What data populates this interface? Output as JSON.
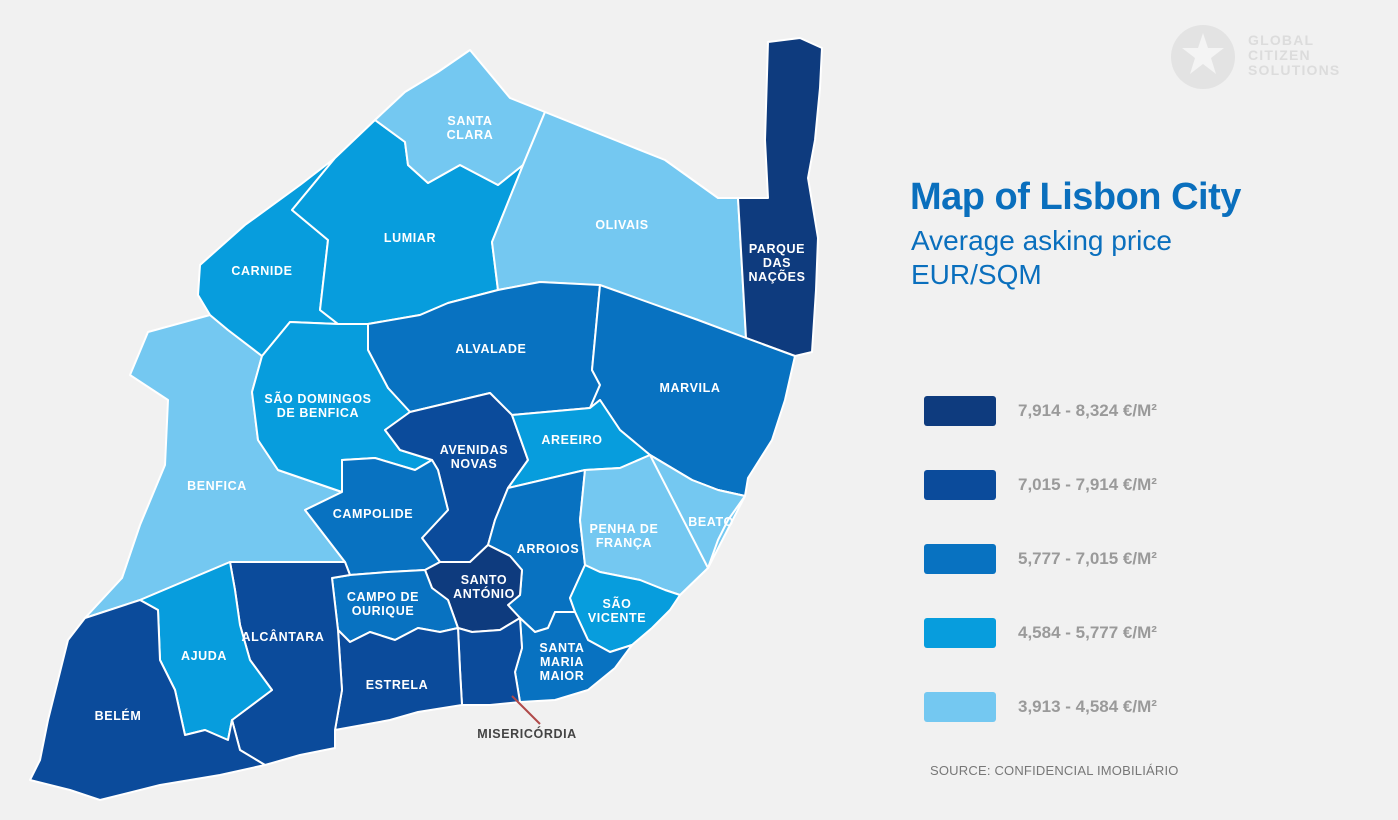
{
  "title": "Map of Lisbon City",
  "subtitle": "Average asking price EUR/SQM",
  "source": "SOURCE: CONFIDENCIAL IMOBILIÁRIO",
  "logo": {
    "line1": "GLOBAL",
    "line2": "CITIZEN",
    "line3": "SOLUTIONS",
    "icon": "star-seal-icon"
  },
  "colors": {
    "tier1": "#0e3b7e",
    "tier2": "#0b4b9b",
    "tier3": "#0872c1",
    "tier4": "#079ddd",
    "tier5": "#74c8f1",
    "title": "#0a6fbd",
    "background": "#f1f1f1"
  },
  "legend": [
    {
      "label": "7,914 - 8,324 €/M²",
      "color": "#0e3b7e"
    },
    {
      "label": "7,015 - 7,914 €/M²",
      "color": "#0b4b9b"
    },
    {
      "label": "5,777 - 7,015 €/M²",
      "color": "#0872c1"
    },
    {
      "label": "4,584 - 5,777 €/M²",
      "color": "#079ddd"
    },
    {
      "label": "3,913 - 4,584 €/M²",
      "color": "#74c8f1"
    }
  ],
  "districts": {
    "parque_das_nacoes": {
      "lines": [
        "PARQUE",
        "DAS",
        "NAÇÕES"
      ],
      "tier": "7,914 - 8,324 €/M²"
    },
    "santo_antonio": {
      "lines": [
        "SANTO",
        "ANTÓNIO"
      ],
      "tier": "7,914 - 8,324 €/M²"
    },
    "avenidas_novas": {
      "lines": [
        "AVENIDAS",
        "NOVAS"
      ],
      "tier": "7,015 - 7,914 €/M²"
    },
    "belem": {
      "lines": [
        "BELÉM"
      ],
      "tier": "7,015 - 7,914 €/M²"
    },
    "alcantara": {
      "lines": [
        "ALCÂNTARA"
      ],
      "tier": "7,015 - 7,914 €/M²"
    },
    "estrela": {
      "lines": [
        "ESTRELA"
      ],
      "tier": "7,015 - 7,914 €/M²"
    },
    "misericordia": {
      "lines": [
        "MISERICÓRDIA"
      ],
      "tier": "7,015 - 7,914 €/M²"
    },
    "alvalade": {
      "lines": [
        "ALVALADE"
      ],
      "tier": "5,777 - 7,015 €/M²"
    },
    "marvila": {
      "lines": [
        "MARVILA"
      ],
      "tier": "5,777 - 7,015 €/M²"
    },
    "campolide": {
      "lines": [
        "CAMPOLIDE"
      ],
      "tier": "5,777 - 7,015 €/M²"
    },
    "arroios": {
      "lines": [
        "ARROIOS"
      ],
      "tier": "5,777 - 7,015 €/M²"
    },
    "campo_de_ourique": {
      "lines": [
        "CAMPO DE",
        "OURIQUE"
      ],
      "tier": "5,777 - 7,015 €/M²"
    },
    "santa_maria_maior": {
      "lines": [
        "SANTA",
        "MARIA",
        "MAIOR"
      ],
      "tier": "5,777 - 7,015 €/M²"
    },
    "lumiar": {
      "lines": [
        "LUMIAR"
      ],
      "tier": "4,584 - 5,777 €/M²"
    },
    "carnide": {
      "lines": [
        "CARNIDE"
      ],
      "tier": "4,584 - 5,777 €/M²"
    },
    "sao_domingos_de_benfica": {
      "lines": [
        "SÃO DOMINGOS",
        "DE BENFICA"
      ],
      "tier": "4,584 - 5,777 €/M²"
    },
    "areeiro": {
      "lines": [
        "AREEIRO"
      ],
      "tier": "4,584 - 5,777 €/M²"
    },
    "ajuda": {
      "lines": [
        "AJUDA"
      ],
      "tier": "4,584 - 5,777 €/M²"
    },
    "sao_vicente": {
      "lines": [
        "SÃO",
        "VICENTE"
      ],
      "tier": "4,584 - 5,777 €/M²"
    },
    "santa_clara": {
      "lines": [
        "SANTA",
        "CLARA"
      ],
      "tier": "3,913 - 4,584 €/M²"
    },
    "olivais": {
      "lines": [
        "OLIVAIS"
      ],
      "tier": "3,913 - 4,584 €/M²"
    },
    "benfica": {
      "lines": [
        "BENFICA"
      ],
      "tier": "3,913 - 4,584 €/M²"
    },
    "penha_de_franca": {
      "lines": [
        "PENHA DE",
        "FRANÇA"
      ],
      "tier": "3,913 - 4,584 €/M²"
    },
    "beato": {
      "lines": [
        "BEATO"
      ],
      "tier": "3,913 - 4,584 €/M²"
    }
  }
}
